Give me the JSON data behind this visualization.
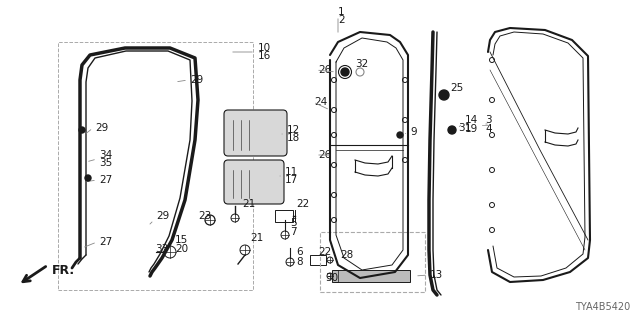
{
  "diagram_code": "TYA4B5420",
  "bg_color": "#ffffff",
  "dark": "#1a1a1a",
  "gray": "#888888"
}
